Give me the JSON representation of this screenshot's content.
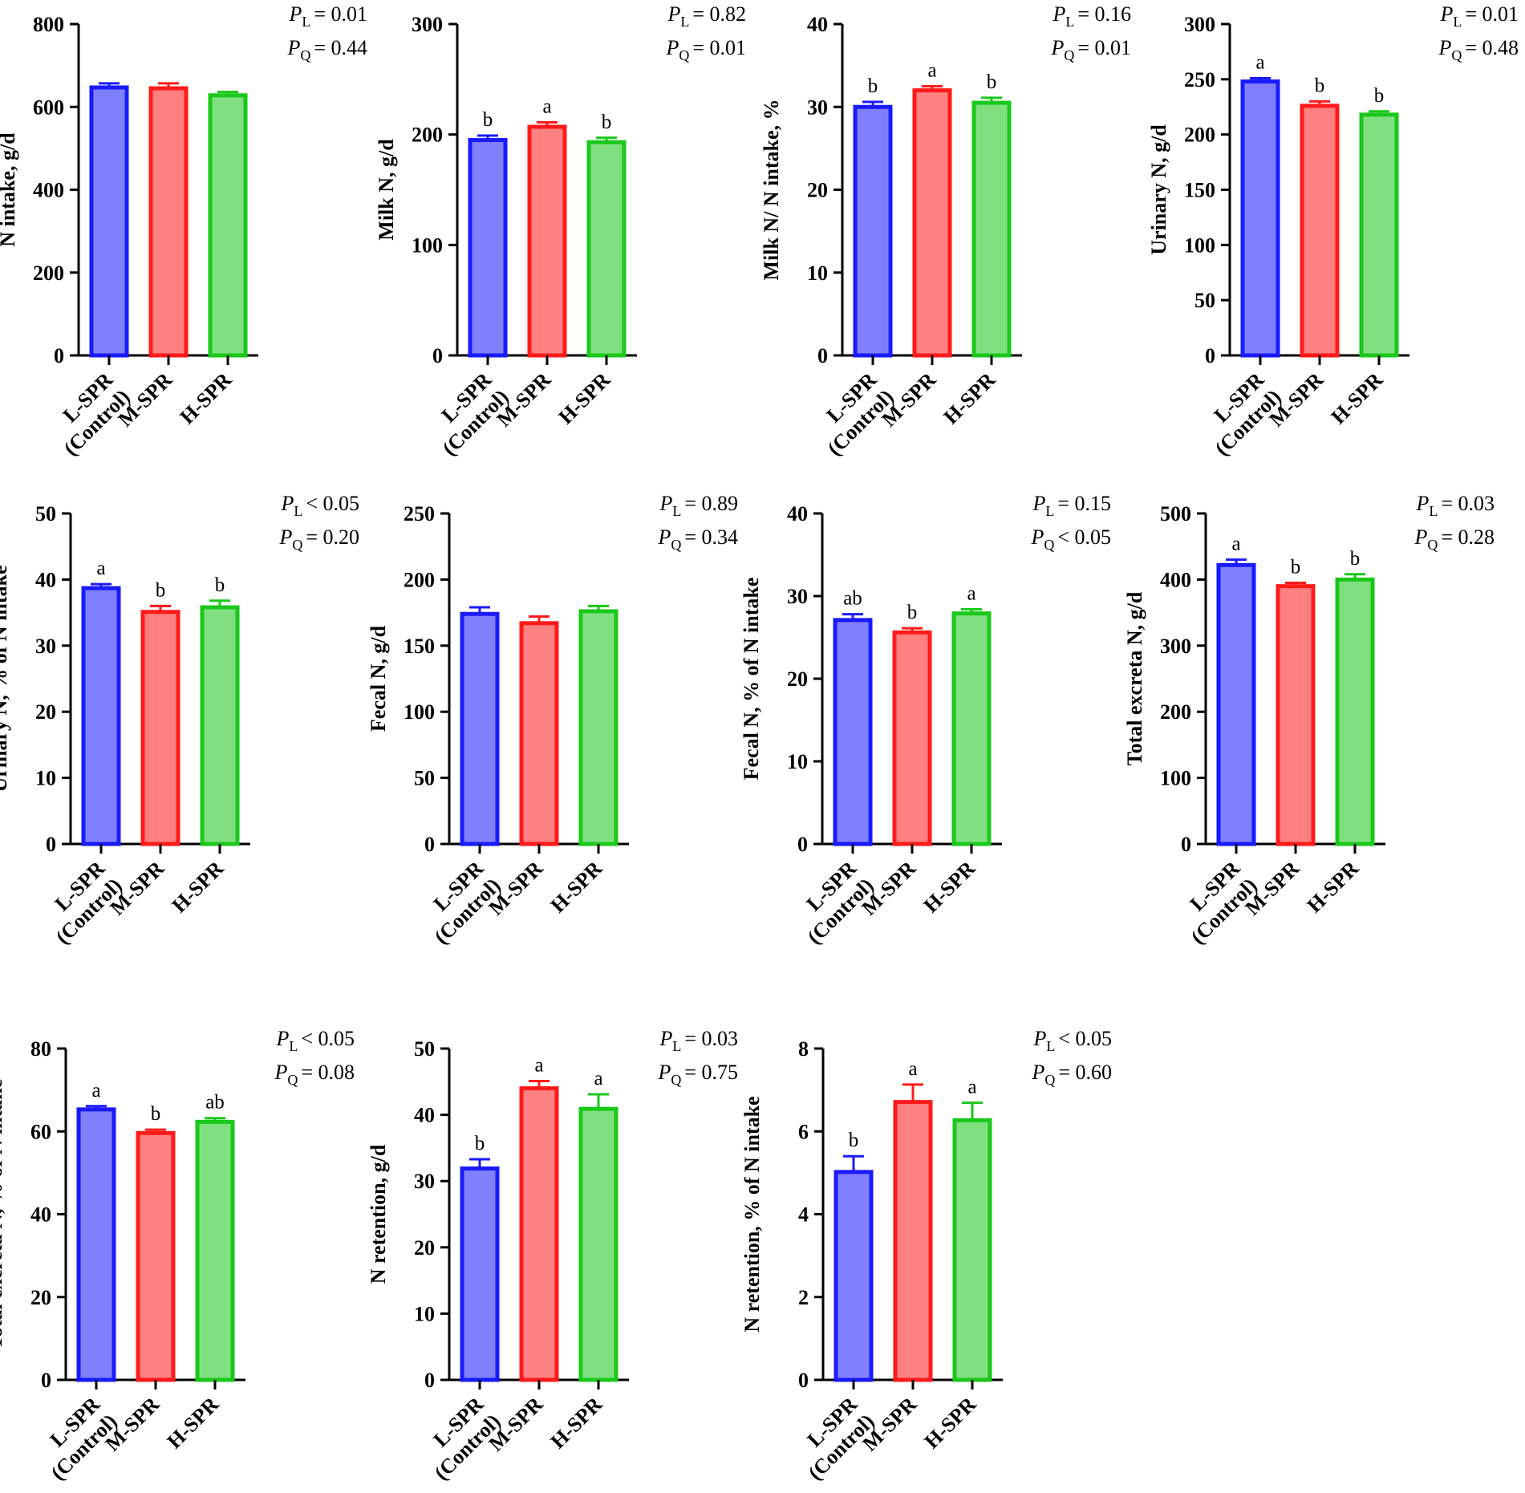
{
  "figure_title": "",
  "colors": {
    "series": [
      {
        "fill": "#8080ff",
        "stroke": "#1a1aff"
      },
      {
        "fill": "#ff8080",
        "stroke": "#ff1a1a"
      },
      {
        "fill": "#80e080",
        "stroke": "#1ac81a"
      }
    ],
    "axis": "#000000"
  },
  "chart_data": [
    {
      "type": "bar",
      "ylabel": "N intake, g/d",
      "ylim": [
        0,
        800
      ],
      "yticks": [
        "0",
        "200",
        "400",
        "600",
        "800"
      ],
      "categories": [
        [
          "L-SPR",
          "(Control)"
        ],
        [
          "M-SPR"
        ],
        [
          "H-SPR"
        ]
      ],
      "values": [
        647,
        645,
        628
      ],
      "errors": [
        10,
        12,
        8
      ],
      "letters": [
        "",
        "",
        ""
      ],
      "p_linear": "= 0.01",
      "p_quadratic": "= 0.44"
    },
    {
      "type": "bar",
      "ylabel": "Milk N, g/d",
      "ylim": [
        0,
        300
      ],
      "yticks": [
        "0",
        "100",
        "200",
        "300"
      ],
      "categories": [
        [
          "L-SPR",
          "(Control)"
        ],
        [
          "M-SPR"
        ],
        [
          "H-SPR"
        ]
      ],
      "values": [
        195,
        207,
        193
      ],
      "errors": [
        4,
        4,
        4
      ],
      "letters": [
        "b",
        "a",
        "b"
      ],
      "p_linear": "= 0.82",
      "p_quadratic": "= 0.01"
    },
    {
      "type": "bar",
      "ylabel": "Milk N/ N intake, %",
      "ylim": [
        0,
        40
      ],
      "yticks": [
        "0",
        "10",
        "20",
        "30",
        "40"
      ],
      "categories": [
        [
          "L-SPR",
          "(Control)"
        ],
        [
          "M-SPR"
        ],
        [
          "H-SPR"
        ]
      ],
      "values": [
        30,
        32,
        30.5
      ],
      "errors": [
        0.6,
        0.5,
        0.6
      ],
      "letters": [
        "b",
        "a",
        "b"
      ],
      "p_linear": "= 0.16",
      "p_quadratic": "= 0.01"
    },
    {
      "type": "bar",
      "ylabel": "Urinary N, g/d",
      "ylim": [
        0,
        300
      ],
      "yticks": [
        "0",
        "50",
        "100",
        "150",
        "200",
        "250",
        "300"
      ],
      "categories": [
        [
          "L-SPR",
          "(Control)"
        ],
        [
          "M-SPR"
        ],
        [
          "H-SPR"
        ]
      ],
      "values": [
        248,
        226,
        218
      ],
      "errors": [
        3,
        4,
        3
      ],
      "letters": [
        "a",
        "b",
        "b"
      ],
      "p_linear": "= 0.01",
      "p_quadratic": "= 0.48"
    },
    {
      "type": "bar",
      "ylabel": "Urinary N, % of N intake",
      "ylim": [
        0,
        50
      ],
      "yticks": [
        "0",
        "10",
        "20",
        "30",
        "40",
        "50"
      ],
      "categories": [
        [
          "L-SPR",
          "(Control)"
        ],
        [
          "M-SPR"
        ],
        [
          "H-SPR"
        ]
      ],
      "values": [
        38.7,
        35.1,
        35.8
      ],
      "errors": [
        0.6,
        0.9,
        1.0
      ],
      "letters": [
        "a",
        "b",
        "b"
      ],
      "p_linear": "< 0.05",
      "p_quadratic": "= 0.20"
    },
    {
      "type": "bar",
      "ylabel": "Fecal N, g/d",
      "ylim": [
        0,
        250
      ],
      "yticks": [
        "0",
        "50",
        "100",
        "150",
        "200",
        "250"
      ],
      "categories": [
        [
          "L-SPR",
          "(Control)"
        ],
        [
          "M-SPR"
        ],
        [
          "H-SPR"
        ]
      ],
      "values": [
        174,
        167,
        176
      ],
      "errors": [
        5,
        5,
        4
      ],
      "letters": [
        "",
        "",
        ""
      ],
      "p_linear": "= 0.89",
      "p_quadratic": "= 0.34"
    },
    {
      "type": "bar",
      "ylabel": "Fecal N, % of N intake",
      "ylim": [
        0,
        40
      ],
      "yticks": [
        "0",
        "10",
        "20",
        "30",
        "40"
      ],
      "categories": [
        [
          "L-SPR",
          "(Control)"
        ],
        [
          "M-SPR"
        ],
        [
          "H-SPR"
        ]
      ],
      "values": [
        27.1,
        25.6,
        27.9
      ],
      "errors": [
        0.7,
        0.5,
        0.5
      ],
      "letters": [
        "ab",
        "b",
        "a"
      ],
      "p_linear": "= 0.15",
      "p_quadratic": "< 0.05"
    },
    {
      "type": "bar",
      "ylabel": "Total excreta N, g/d",
      "ylim": [
        0,
        500
      ],
      "yticks": [
        "0",
        "100",
        "200",
        "300",
        "400",
        "500"
      ],
      "categories": [
        [
          "L-SPR",
          "(Control)"
        ],
        [
          "M-SPR"
        ],
        [
          "H-SPR"
        ]
      ],
      "values": [
        422,
        390,
        400
      ],
      "errors": [
        8,
        5,
        8
      ],
      "letters": [
        "a",
        "b",
        "b"
      ],
      "p_linear": "= 0.03",
      "p_quadratic": "= 0.28"
    },
    {
      "type": "bar",
      "ylabel": "Total excreta N, % of N intake",
      "ylim": [
        0,
        80
      ],
      "yticks": [
        "0",
        "20",
        "40",
        "60",
        "80"
      ],
      "categories": [
        [
          "L-SPR",
          "(Control)"
        ],
        [
          "M-SPR"
        ],
        [
          "H-SPR"
        ]
      ],
      "values": [
        65.3,
        59.6,
        62.3
      ],
      "errors": [
        0.8,
        0.8,
        0.9
      ],
      "letters": [
        "a",
        "b",
        "ab"
      ],
      "p_linear": "< 0.05",
      "p_quadratic": "= 0.08"
    },
    {
      "type": "bar",
      "ylabel": "N retention, g/d",
      "ylim": [
        0,
        50
      ],
      "yticks": [
        "0",
        "10",
        "20",
        "30",
        "40",
        "50"
      ],
      "categories": [
        [
          "L-SPR",
          "(Control)"
        ],
        [
          "M-SPR"
        ],
        [
          "H-SPR"
        ]
      ],
      "values": [
        31.9,
        44.0,
        40.9
      ],
      "errors": [
        1.4,
        1.1,
        2.2
      ],
      "letters": [
        "b",
        "a",
        "a"
      ],
      "p_linear": "= 0.03",
      "p_quadratic": "= 0.75"
    },
    {
      "type": "bar",
      "ylabel": "N retention, % of N intake",
      "ylim": [
        0,
        8
      ],
      "yticks": [
        "0",
        "2",
        "4",
        "6",
        "8"
      ],
      "categories": [
        [
          "L-SPR",
          "(Control)"
        ],
        [
          "M-SPR"
        ],
        [
          "H-SPR"
        ]
      ],
      "values": [
        5.02,
        6.71,
        6.27
      ],
      "errors": [
        0.38,
        0.42,
        0.42
      ],
      "letters": [
        "b",
        "a",
        "a"
      ],
      "p_linear": "< 0.05",
      "p_quadratic": "= 0.60"
    }
  ]
}
